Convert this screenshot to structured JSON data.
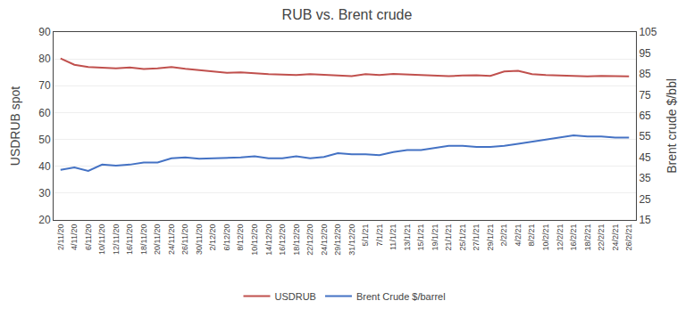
{
  "chart_data": {
    "type": "line",
    "title": "RUB vs. Brent crude",
    "ylabel": "USDRUB spot",
    "y2label": "Brent crude $/bbl",
    "categories": [
      "2/11/20",
      "4/11/20",
      "6/11/20",
      "10/11/20",
      "12/11/20",
      "16/11/20",
      "18/11/20",
      "20/11/20",
      "24/11/20",
      "26/11/20",
      "30/11/20",
      "2/12/20",
      "6/12/20",
      "8/12/20",
      "10/12/20",
      "14/12/20",
      "16/12/20",
      "18/12/20",
      "22/12/20",
      "24/12/20",
      "29/12/20",
      "31/12/20",
      "5/1/21",
      "7/1/21",
      "11/1/21",
      "13/1/21",
      "15/1/21",
      "19/1/21",
      "21/1/21",
      "25/1/21",
      "27/1/21",
      "29/1/21",
      "2/2/21",
      "4/2/21",
      "8/2/21",
      "10/2/21",
      "12/2/21",
      "16/2/21",
      "18/2/21",
      "22/2/21",
      "24/2/21",
      "26/2/21"
    ],
    "series": [
      {
        "name": "USDRUB",
        "color": "#c0504d",
        "axis": "y",
        "values": [
          80.2,
          77.8,
          77.0,
          76.8,
          76.5,
          76.8,
          76.2,
          76.5,
          77.0,
          76.3,
          75.8,
          75.2,
          74.8,
          75.0,
          74.6,
          74.3,
          74.2,
          74.0,
          74.3,
          74.1,
          73.8,
          73.6,
          74.3,
          74.0,
          74.4,
          74.2,
          73.9,
          73.7,
          73.6,
          73.8,
          73.9,
          73.7,
          75.3,
          75.6,
          74.3,
          74.0,
          73.8,
          73.6,
          73.5,
          73.7,
          73.6,
          73.5
        ]
      },
      {
        "name": "Brent Crude $/barrel",
        "color": "#4472c4",
        "axis": "y2",
        "values": [
          39.0,
          40.2,
          38.5,
          41.5,
          41.0,
          41.5,
          42.5,
          42.5,
          44.5,
          45.0,
          44.3,
          44.5,
          44.8,
          45.0,
          45.5,
          44.5,
          44.5,
          45.5,
          44.5,
          45.2,
          47.0,
          46.5,
          46.5,
          46.0,
          47.5,
          48.5,
          48.5,
          49.5,
          50.5,
          50.5,
          50.0,
          50.0,
          50.5,
          51.5,
          52.5,
          53.5,
          54.5,
          55.5,
          55.0,
          55.0,
          54.5,
          54.5
        ]
      }
    ],
    "ylim": [
      20,
      90
    ],
    "yticks": [
      20,
      30,
      40,
      50,
      60,
      70,
      80,
      90
    ],
    "y2lim": [
      15,
      105
    ],
    "y2ticks": [
      15,
      25,
      35,
      45,
      55,
      65,
      75,
      85,
      95,
      105
    ],
    "grid": true,
    "legend": "bottom"
  }
}
